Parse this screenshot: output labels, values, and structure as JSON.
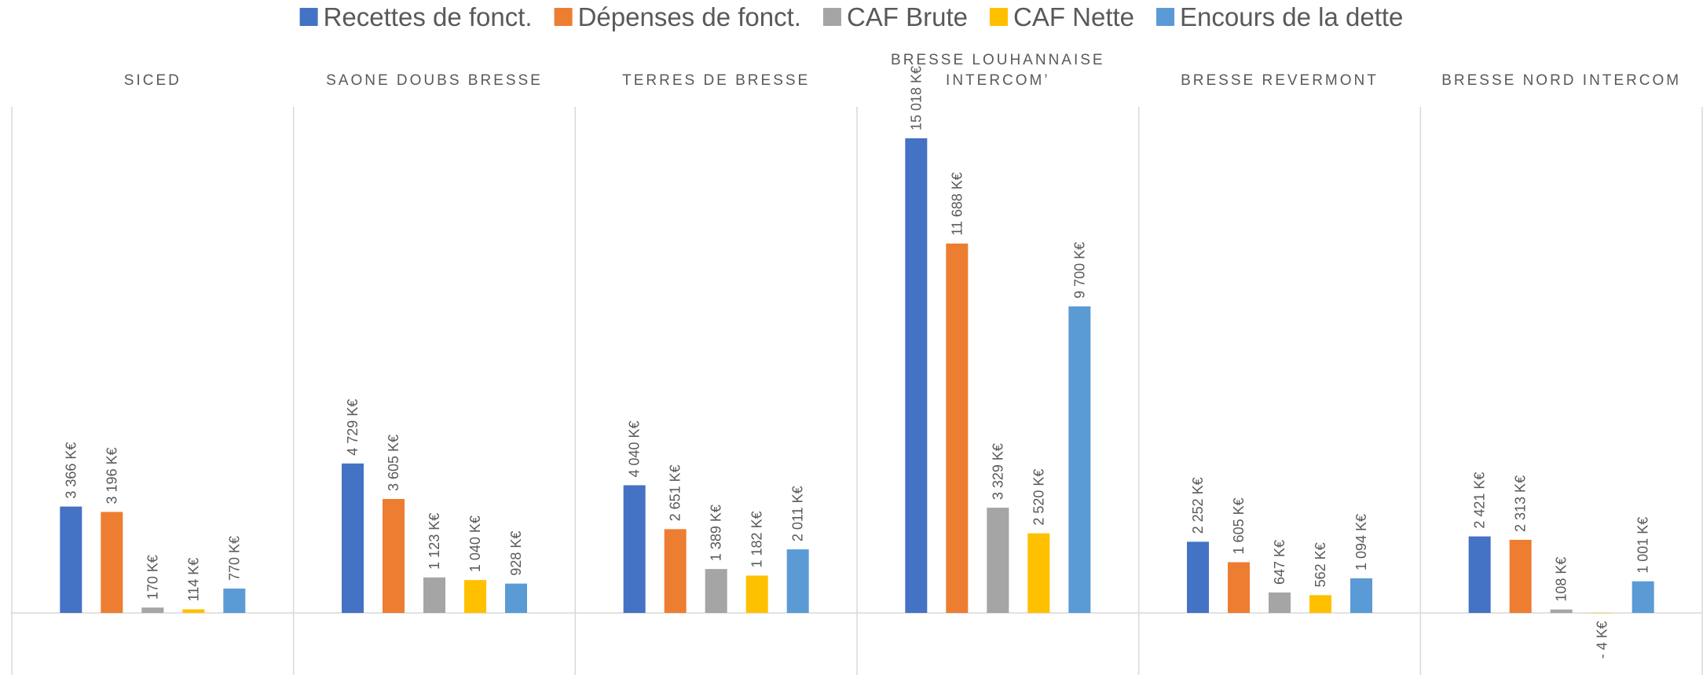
{
  "chart_data": {
    "type": "bar",
    "categories": [
      "SICED",
      "SAONE DOUBS BRESSE",
      "TERRES DE BRESSE",
      "BRESSE LOUHANNAISE INTERCOM’",
      "BRESSE REVERMONT",
      "BRESSE NORD INTERCOM"
    ],
    "series": [
      {
        "name": "Recettes de fonct.",
        "color": "#4472c4",
        "values": [
          3366,
          4729,
          4040,
          15018,
          2252,
          2421
        ],
        "value_labels": [
          "3 366 K€",
          "4 729 K€",
          "4 040 K€",
          "15 018 K€",
          "2 252 K€",
          "2 421 K€"
        ]
      },
      {
        "name": "Dépenses de fonct.",
        "color": "#ed7d31",
        "values": [
          3196,
          3605,
          2651,
          11688,
          1605,
          2313
        ],
        "value_labels": [
          "3 196 K€",
          "3 605 K€",
          "2 651 K€",
          "11 688 K€",
          "1 605 K€",
          "2 313 K€"
        ]
      },
      {
        "name": "CAF Brute",
        "color": "#a5a5a5",
        "values": [
          170,
          1123,
          1389,
          3329,
          647,
          108
        ],
        "value_labels": [
          "170 K€",
          "1 123 K€",
          "1 389 K€",
          "3 329 K€",
          "647 K€",
          "108 K€"
        ]
      },
      {
        "name": "CAF Nette",
        "color": "#ffc000",
        "values": [
          114,
          1040,
          1182,
          2520,
          562,
          -4
        ],
        "value_labels": [
          "114 K€",
          "1 040 K€",
          "1 182 K€",
          "2 520 K€",
          "562 K€",
          "- 4 K€"
        ]
      },
      {
        "name": "Encours de la dette",
        "color": "#5b9bd5",
        "values": [
          770,
          928,
          2011,
          9700,
          1094,
          1001
        ],
        "value_labels": [
          "770 K€",
          "928 K€",
          "2 011 K€",
          "9 700 K€",
          "1 094 K€",
          "1 001 K€"
        ]
      }
    ],
    "legend": "top"
  }
}
